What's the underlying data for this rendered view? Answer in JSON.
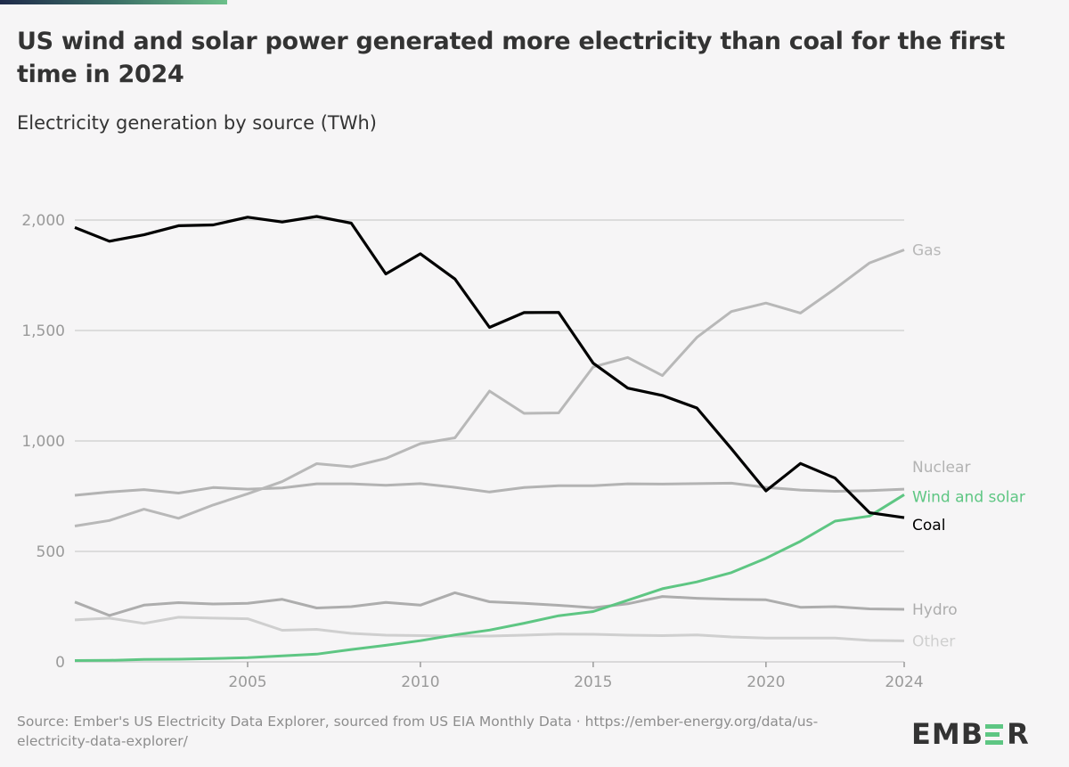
{
  "header": {
    "title": "US wind and solar power generated more electricity than coal for the first time in 2024",
    "subtitle": "Electricity generation by source (TWh)"
  },
  "footer": {
    "source": "Source: Ember's US Electricity Data Explorer, sourced from US EIA Monthly Data · https://ember-energy.org/data/us-electricity-data-explorer/",
    "logo_text_left": "EMB",
    "logo_text_right": "R",
    "logo_accent": "#5ec683"
  },
  "chart_data": {
    "type": "line",
    "title": "US wind and solar power generated more electricity than coal for the first time in 2024",
    "subtitle": "Electricity generation by source (TWh)",
    "xlabel": "",
    "ylabel": "TWh",
    "xlim": [
      2000,
      2024
    ],
    "ylim": [
      0,
      2000
    ],
    "grid": true,
    "legend": "right-inline-labels",
    "x_ticks": [
      2005,
      2010,
      2015,
      2020,
      2024
    ],
    "x_tick_labels": [
      "2005",
      "2010",
      "2015",
      "2020",
      "2024"
    ],
    "y_ticks": [
      0,
      500,
      1000,
      1500,
      2000
    ],
    "y_tick_labels": [
      "0",
      "500",
      "1,000",
      "1,500",
      "2,000"
    ],
    "x": [
      2000,
      2001,
      2002,
      2003,
      2004,
      2005,
      2006,
      2007,
      2008,
      2009,
      2010,
      2011,
      2012,
      2013,
      2014,
      2015,
      2016,
      2017,
      2018,
      2019,
      2020,
      2021,
      2022,
      2023,
      2024
    ],
    "series": [
      {
        "name": "Other",
        "color": "#cfcfcf",
        "label_color": "#cfcfcf",
        "values": [
          190,
          198,
          174,
          202,
          198,
          195,
          143,
          147,
          129,
          121,
          119,
          117,
          117,
          121,
          126,
          125,
          121,
          119,
          122,
          113,
          108,
          108,
          108,
          97,
          95
        ]
      },
      {
        "name": "Hydro",
        "color": "#adadad",
        "label_color": "#adadad",
        "values": [
          271,
          210,
          257,
          268,
          262,
          265,
          283,
          244,
          250,
          269,
          257,
          313,
          272,
          265,
          256,
          245,
          263,
          296,
          288,
          283,
          281,
          247,
          250,
          240,
          238
        ]
      },
      {
        "name": "Nuclear",
        "color": "#b3b3b3",
        "label_color": "#b3b3b3",
        "values": [
          754,
          769,
          780,
          764,
          789,
          782,
          787,
          806,
          806,
          799,
          807,
          790,
          769,
          789,
          797,
          797,
          806,
          805,
          807,
          809,
          790,
          778,
          772,
          775,
          782
        ]
      },
      {
        "name": "Gas",
        "color": "#b8b8b8",
        "label_color": "#b8b8b8",
        "values": [
          615,
          640,
          691,
          650,
          710,
          761,
          816,
          897,
          883,
          921,
          988,
          1014,
          1226,
          1125,
          1127,
          1335,
          1378,
          1296,
          1469,
          1586,
          1624,
          1579,
          1689,
          1806,
          1865
        ]
      },
      {
        "name": "Wind and solar",
        "color": "#5ec683",
        "label_color": "#5ec683",
        "values": [
          6,
          7,
          11,
          12,
          15,
          19,
          27,
          35,
          56,
          75,
          96,
          122,
          144,
          175,
          209,
          228,
          279,
          331,
          362,
          404,
          469,
          546,
          637,
          660,
          757
        ]
      },
      {
        "name": "Coal",
        "color": "#000000",
        "label_color": "#000000",
        "values": [
          1966,
          1904,
          1933,
          1974,
          1978,
          2013,
          1991,
          2016,
          1986,
          1756,
          1847,
          1733,
          1514,
          1581,
          1582,
          1352,
          1239,
          1206,
          1149,
          965,
          774,
          898,
          832,
          675,
          653
        ]
      }
    ]
  }
}
